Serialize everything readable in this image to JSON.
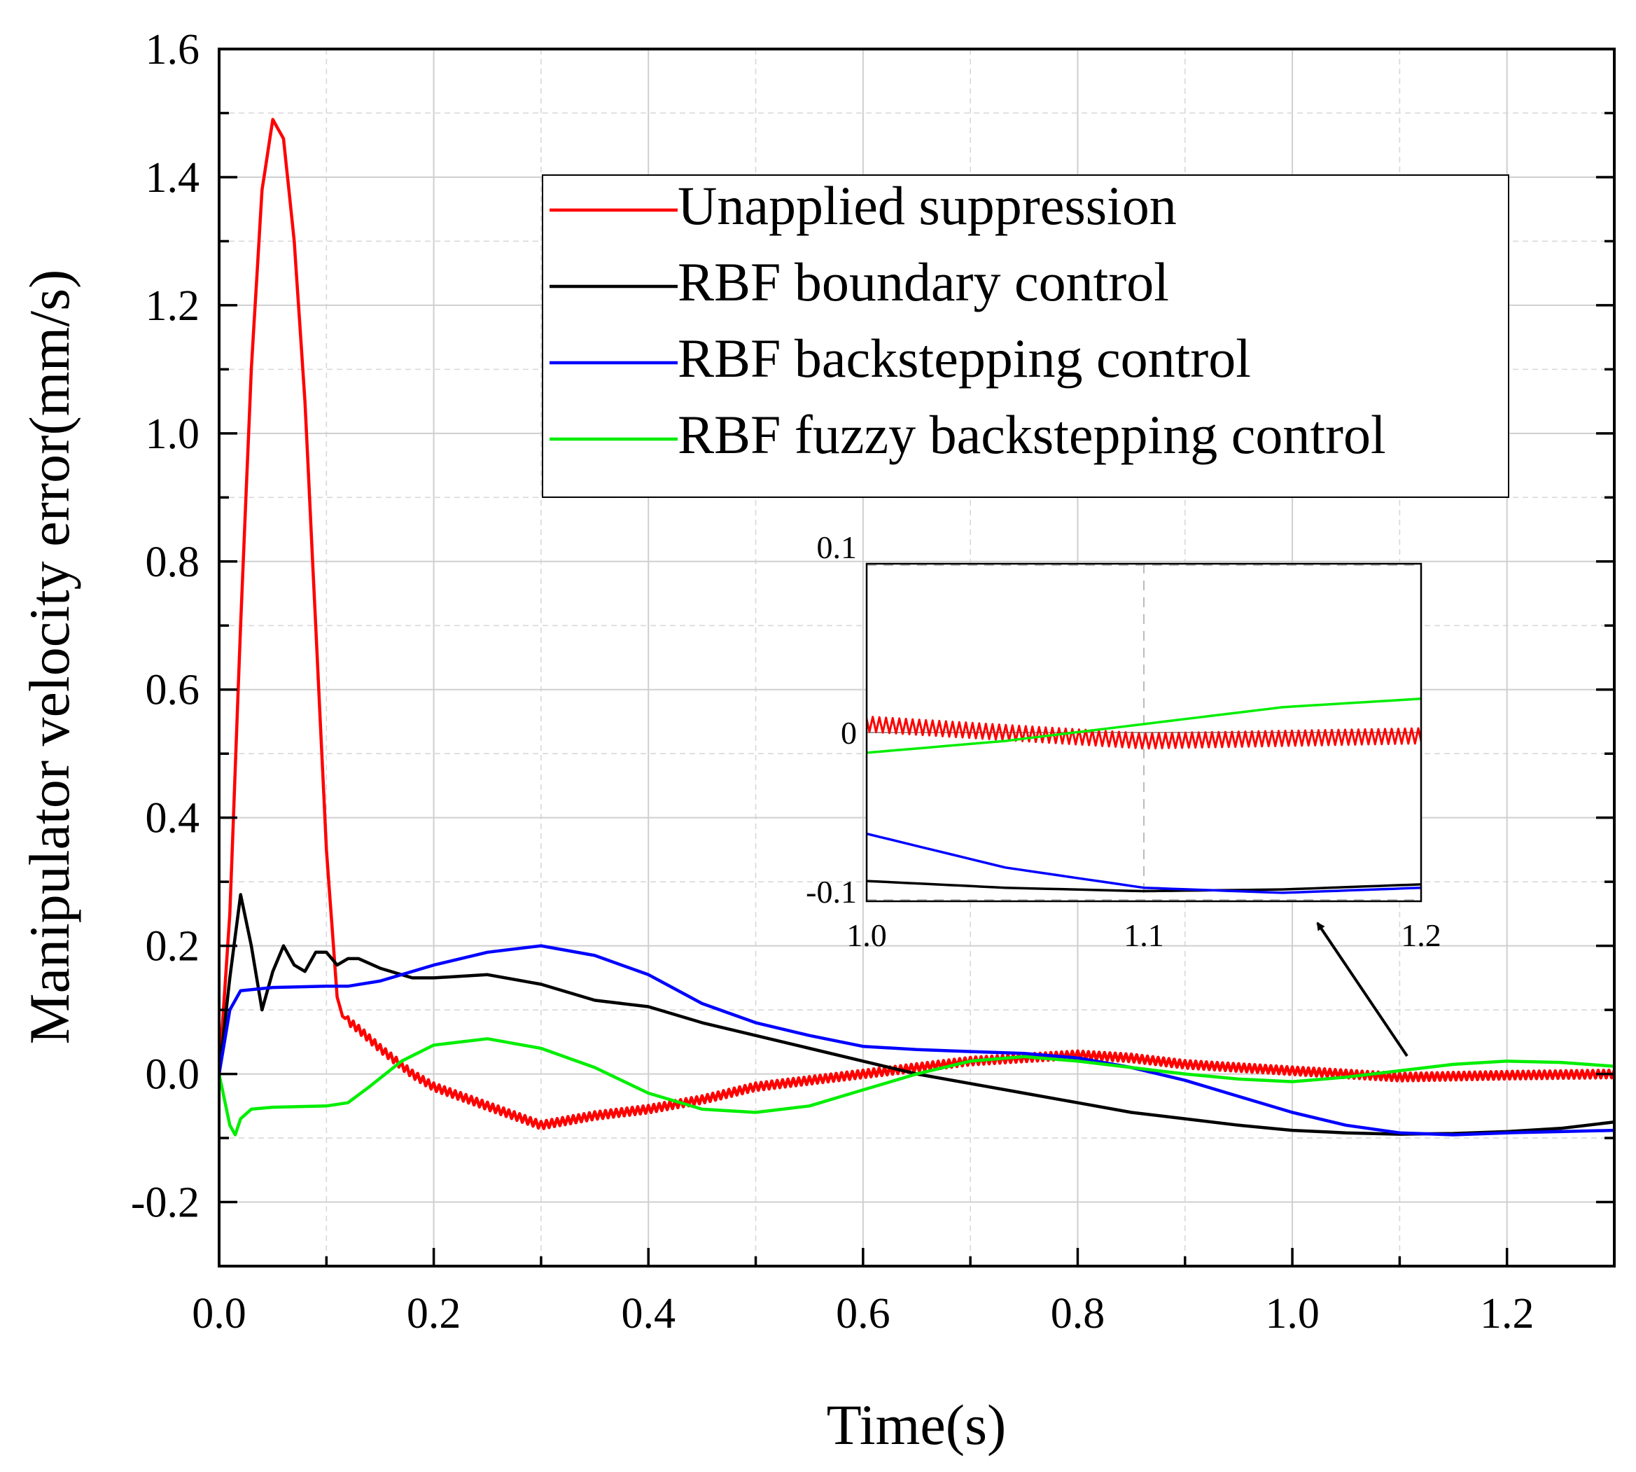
{
  "chart_data": {
    "type": "line",
    "xlabel": "Time(s)",
    "ylabel": "Manipulator velocity error(mm/s)",
    "xlim": [
      0,
      1.3
    ],
    "ylim": [
      -0.3,
      1.6
    ],
    "xticks": [
      "0.0",
      "0.2",
      "0.4",
      "0.6",
      "0.8",
      "1.0",
      "1.2"
    ],
    "yticks": [
      "-0.2",
      "0.0",
      "0.2",
      "0.4",
      "0.6",
      "0.8",
      "1.0",
      "1.2",
      "1.4",
      "1.6"
    ],
    "grid": true,
    "legend_position": "top-right",
    "series": [
      {
        "name": "Unapplied suppression",
        "color": "#ff0000",
        "noise": 0.006,
        "points": [
          [
            0,
            0
          ],
          [
            0.01,
            0.25
          ],
          [
            0.02,
            0.7
          ],
          [
            0.03,
            1.1
          ],
          [
            0.04,
            1.38
          ],
          [
            0.05,
            1.49
          ],
          [
            0.06,
            1.46
          ],
          [
            0.07,
            1.3
          ],
          [
            0.08,
            1.05
          ],
          [
            0.09,
            0.7
          ],
          [
            0.1,
            0.35
          ],
          [
            0.11,
            0.12
          ],
          [
            0.115,
            0.09
          ],
          [
            0.13,
            0.07
          ],
          [
            0.15,
            0.04
          ],
          [
            0.18,
            0.0
          ],
          [
            0.2,
            -0.02
          ],
          [
            0.25,
            -0.05
          ],
          [
            0.3,
            -0.08
          ],
          [
            0.35,
            -0.065
          ],
          [
            0.4,
            -0.055
          ],
          [
            0.45,
            -0.04
          ],
          [
            0.5,
            -0.02
          ],
          [
            0.55,
            -0.01
          ],
          [
            0.6,
            0.0
          ],
          [
            0.65,
            0.01
          ],
          [
            0.7,
            0.02
          ],
          [
            0.75,
            0.025
          ],
          [
            0.8,
            0.03
          ],
          [
            0.85,
            0.025
          ],
          [
            0.9,
            0.015
          ],
          [
            0.95,
            0.01
          ],
          [
            1.0,
            0.005
          ],
          [
            1.05,
            0.0
          ],
          [
            1.1,
            -0.005
          ],
          [
            1.2,
            -0.002
          ],
          [
            1.3,
            0.0
          ]
        ]
      },
      {
        "name": "RBF boundary control",
        "color": "#000000",
        "noise": 0,
        "points": [
          [
            0,
            0
          ],
          [
            0.01,
            0.15
          ],
          [
            0.02,
            0.28
          ],
          [
            0.03,
            0.2
          ],
          [
            0.04,
            0.1
          ],
          [
            0.05,
            0.16
          ],
          [
            0.06,
            0.2
          ],
          [
            0.07,
            0.17
          ],
          [
            0.08,
            0.16
          ],
          [
            0.09,
            0.19
          ],
          [
            0.1,
            0.19
          ],
          [
            0.11,
            0.17
          ],
          [
            0.12,
            0.18
          ],
          [
            0.13,
            0.18
          ],
          [
            0.15,
            0.165
          ],
          [
            0.18,
            0.15
          ],
          [
            0.2,
            0.15
          ],
          [
            0.25,
            0.155
          ],
          [
            0.3,
            0.14
          ],
          [
            0.35,
            0.115
          ],
          [
            0.4,
            0.105
          ],
          [
            0.45,
            0.08
          ],
          [
            0.5,
            0.06
          ],
          [
            0.55,
            0.04
          ],
          [
            0.6,
            0.02
          ],
          [
            0.65,
            0.0
          ],
          [
            0.7,
            -0.015
          ],
          [
            0.75,
            -0.03
          ],
          [
            0.8,
            -0.045
          ],
          [
            0.85,
            -0.06
          ],
          [
            0.9,
            -0.07
          ],
          [
            0.95,
            -0.08
          ],
          [
            1.0,
            -0.088
          ],
          [
            1.05,
            -0.092
          ],
          [
            1.1,
            -0.094
          ],
          [
            1.15,
            -0.093
          ],
          [
            1.2,
            -0.09
          ],
          [
            1.25,
            -0.085
          ],
          [
            1.3,
            -0.075
          ]
        ]
      },
      {
        "name": "RBF backstepping control",
        "color": "#0000ff",
        "noise": 0,
        "points": [
          [
            0,
            0
          ],
          [
            0.01,
            0.1
          ],
          [
            0.02,
            0.13
          ],
          [
            0.05,
            0.135
          ],
          [
            0.1,
            0.137
          ],
          [
            0.12,
            0.137
          ],
          [
            0.15,
            0.145
          ],
          [
            0.2,
            0.17
          ],
          [
            0.25,
            0.19
          ],
          [
            0.3,
            0.2
          ],
          [
            0.35,
            0.185
          ],
          [
            0.4,
            0.155
          ],
          [
            0.45,
            0.11
          ],
          [
            0.5,
            0.08
          ],
          [
            0.55,
            0.06
          ],
          [
            0.6,
            0.043
          ],
          [
            0.65,
            0.038
          ],
          [
            0.7,
            0.035
          ],
          [
            0.75,
            0.032
          ],
          [
            0.8,
            0.025
          ],
          [
            0.85,
            0.01
          ],
          [
            0.9,
            -0.01
          ],
          [
            0.95,
            -0.035
          ],
          [
            1.0,
            -0.06
          ],
          [
            1.05,
            -0.08
          ],
          [
            1.1,
            -0.092
          ],
          [
            1.15,
            -0.095
          ],
          [
            1.2,
            -0.092
          ],
          [
            1.25,
            -0.09
          ],
          [
            1.3,
            -0.088
          ]
        ]
      },
      {
        "name": "RBF fuzzy backstepping control",
        "color": "#00ee00",
        "noise": 0,
        "points": [
          [
            0,
            0
          ],
          [
            0.01,
            -0.08
          ],
          [
            0.015,
            -0.095
          ],
          [
            0.02,
            -0.07
          ],
          [
            0.03,
            -0.055
          ],
          [
            0.05,
            -0.052
          ],
          [
            0.1,
            -0.05
          ],
          [
            0.12,
            -0.045
          ],
          [
            0.14,
            -0.02
          ],
          [
            0.17,
            0.02
          ],
          [
            0.2,
            0.045
          ],
          [
            0.25,
            0.055
          ],
          [
            0.3,
            0.04
          ],
          [
            0.35,
            0.01
          ],
          [
            0.4,
            -0.03
          ],
          [
            0.45,
            -0.055
          ],
          [
            0.5,
            -0.06
          ],
          [
            0.55,
            -0.05
          ],
          [
            0.6,
            -0.025
          ],
          [
            0.65,
            0.0
          ],
          [
            0.7,
            0.02
          ],
          [
            0.75,
            0.027
          ],
          [
            0.8,
            0.02
          ],
          [
            0.85,
            0.01
          ],
          [
            0.9,
            0.0
          ],
          [
            0.95,
            -0.008
          ],
          [
            1.0,
            -0.012
          ],
          [
            1.05,
            -0.005
          ],
          [
            1.1,
            0.005
          ],
          [
            1.15,
            0.015
          ],
          [
            1.2,
            0.02
          ],
          [
            1.25,
            0.018
          ],
          [
            1.3,
            0.012
          ]
        ]
      }
    ],
    "inset": {
      "xlim": [
        1.0,
        1.2
      ],
      "ylim": [
        -0.1,
        0.1
      ],
      "xticks": [
        "1.0",
        "1.1",
        "1.2"
      ],
      "yticks": [
        "-0.1",
        "0",
        "0.1"
      ],
      "zoom_of": "main plot, 1.0–1.2 s"
    }
  }
}
